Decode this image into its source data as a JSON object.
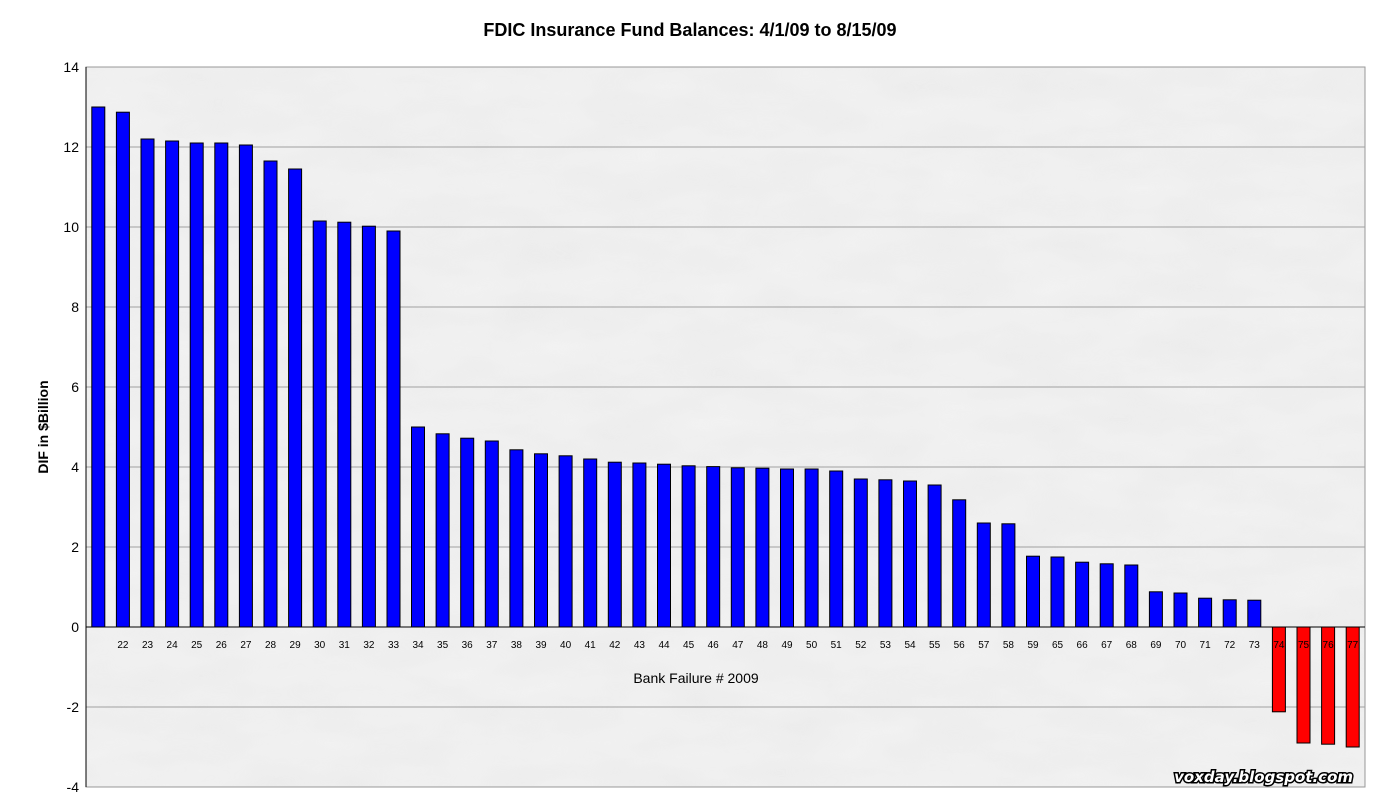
{
  "chart_data": {
    "type": "bar",
    "title": "FDIC Insurance Fund Balances: 4/1/09 to 8/15/09",
    "xlabel": "Bank Failure # 2009",
    "ylabel": "DIF in $Billion",
    "ylim": [
      -4,
      14
    ],
    "yticks": [
      -4,
      -2,
      0,
      2,
      4,
      6,
      8,
      10,
      12,
      14
    ],
    "grid": true,
    "categories": [
      "",
      "22",
      "23",
      "24",
      "25",
      "26",
      "27",
      "28",
      "29",
      "30",
      "31",
      "32",
      "33",
      "34",
      "35",
      "36",
      "37",
      "38",
      "39",
      "40",
      "41",
      "42",
      "43",
      "44",
      "45",
      "46",
      "47",
      "48",
      "49",
      "50",
      "51",
      "52",
      "53",
      "54",
      "55",
      "56",
      "57",
      "58",
      "59",
      "65",
      "66",
      "67",
      "68",
      "69",
      "70",
      "71",
      "72",
      "73",
      "74",
      "75",
      "76",
      "77"
    ],
    "values": [
      13.0,
      12.87,
      12.2,
      12.15,
      12.1,
      12.1,
      12.05,
      11.65,
      11.45,
      10.15,
      10.12,
      10.02,
      9.9,
      5.0,
      4.83,
      4.72,
      4.65,
      4.43,
      4.33,
      4.28,
      4.2,
      4.12,
      4.1,
      4.07,
      4.03,
      4.01,
      3.98,
      3.97,
      3.95,
      3.95,
      3.9,
      3.7,
      3.68,
      3.65,
      3.55,
      3.18,
      2.6,
      2.58,
      1.77,
      1.75,
      1.62,
      1.58,
      1.55,
      0.88,
      0.85,
      0.72,
      0.68,
      0.67,
      -2.12,
      -2.9,
      -2.93,
      -3.0
    ],
    "colors": {
      "positive": "#0000ff",
      "negative": "#ff0000"
    }
  },
  "watermark": "voxday.blogspot.com"
}
